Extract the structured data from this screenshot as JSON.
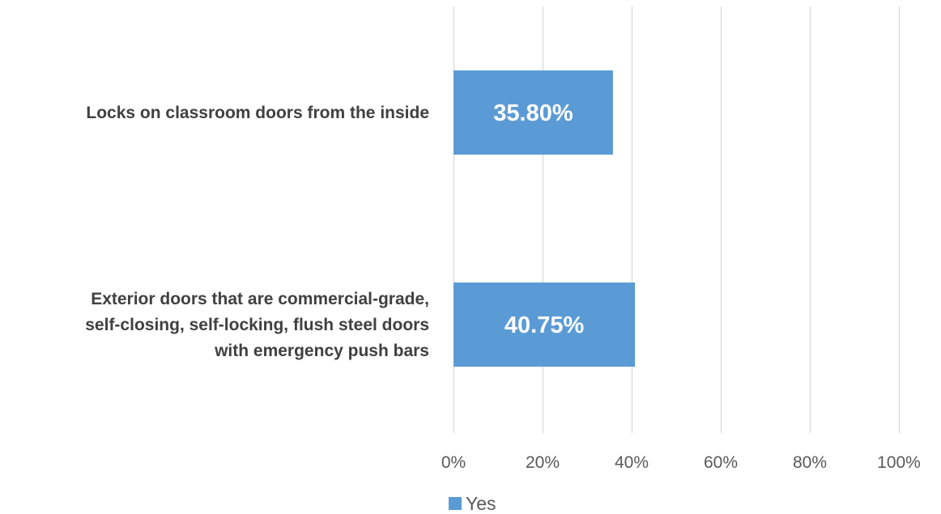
{
  "chart_data": {
    "type": "bar",
    "orientation": "horizontal",
    "categories": [
      [
        "Locks on classroom doors from the inside"
      ],
      [
        "Exterior doors that are commercial-grade,",
        "self-closing, self-locking, flush steel doors",
        "with emergency push bars"
      ]
    ],
    "series": [
      {
        "name": "Yes",
        "values": [
          35.8,
          40.75
        ],
        "labels": [
          "35.80%",
          "40.75%"
        ],
        "color": "#5b9bd5"
      }
    ],
    "xlim": [
      0,
      100
    ],
    "xticks": [
      0,
      20,
      40,
      60,
      80,
      100
    ],
    "xtick_labels": [
      "0%",
      "20%",
      "40%",
      "60%",
      "80%",
      "100%"
    ],
    "grid": true,
    "grid_color": "#d9d9d9",
    "legend_position": "bottom",
    "title": "",
    "xlabel": "",
    "ylabel": ""
  }
}
